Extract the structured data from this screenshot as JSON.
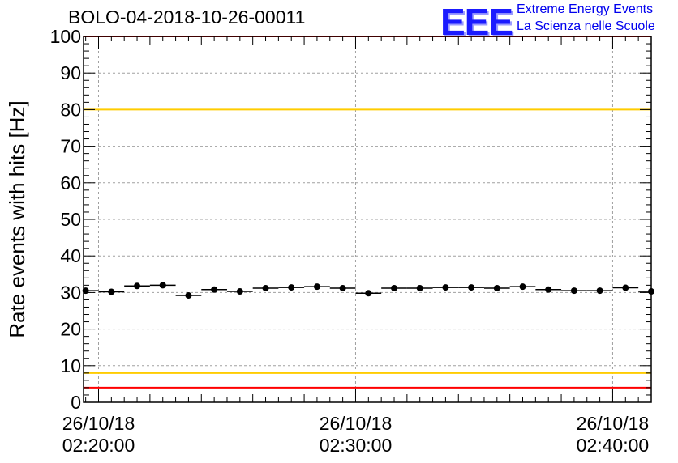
{
  "title": "BOLO-04-2018-10-26-00011",
  "logo": {
    "mark": "EEE",
    "line1": "Extreme Energy Events",
    "line2": "La Scienza nelle Scuole",
    "color": "#0000ee"
  },
  "chart_data": {
    "type": "scatter",
    "title": "BOLO-04-2018-10-26-00011",
    "xlabel": "",
    "ylabel": "Rate events with hits [Hz]",
    "ylim": [
      0,
      100
    ],
    "yticks": [
      0,
      10,
      20,
      30,
      40,
      50,
      60,
      70,
      80,
      90,
      100
    ],
    "xlim": [
      "02:19:25",
      "02:41:30"
    ],
    "xticks": [
      {
        "t": "02:20:00",
        "date": "26/10/18",
        "time": "02:20:00"
      },
      {
        "t": "02:30:00",
        "date": "26/10/18",
        "time": "02:30:00"
      },
      {
        "t": "02:40:00",
        "date": "26/10/18",
        "time": "02:40:00"
      }
    ],
    "grid": true,
    "bin_width_s": 60,
    "points": [
      {
        "t": "02:19:30",
        "y": 30.5
      },
      {
        "t": "02:20:30",
        "y": 30.2
      },
      {
        "t": "02:21:30",
        "y": 31.8
      },
      {
        "t": "02:22:30",
        "y": 32.0
      },
      {
        "t": "02:23:30",
        "y": 29.2
      },
      {
        "t": "02:24:30",
        "y": 30.8
      },
      {
        "t": "02:25:30",
        "y": 30.3
      },
      {
        "t": "02:26:30",
        "y": 31.2
      },
      {
        "t": "02:27:30",
        "y": 31.4
      },
      {
        "t": "02:28:30",
        "y": 31.6
      },
      {
        "t": "02:29:30",
        "y": 31.2
      },
      {
        "t": "02:30:30",
        "y": 29.8
      },
      {
        "t": "02:31:30",
        "y": 31.2
      },
      {
        "t": "02:32:30",
        "y": 31.2
      },
      {
        "t": "02:33:30",
        "y": 31.4
      },
      {
        "t": "02:34:30",
        "y": 31.4
      },
      {
        "t": "02:35:30",
        "y": 31.2
      },
      {
        "t": "02:36:30",
        "y": 31.6
      },
      {
        "t": "02:37:30",
        "y": 30.8
      },
      {
        "t": "02:38:30",
        "y": 30.5
      },
      {
        "t": "02:39:30",
        "y": 30.5
      },
      {
        "t": "02:40:30",
        "y": 31.3
      },
      {
        "t": "02:41:30",
        "y": 30.3
      }
    ],
    "reference_lines": [
      {
        "y": 100,
        "color": "#ff0000"
      },
      {
        "y": 80,
        "color": "#ffcc00"
      },
      {
        "y": 8,
        "color": "#ffcc00"
      },
      {
        "y": 4,
        "color": "#ff0000"
      }
    ],
    "marker_color": "#000000"
  }
}
